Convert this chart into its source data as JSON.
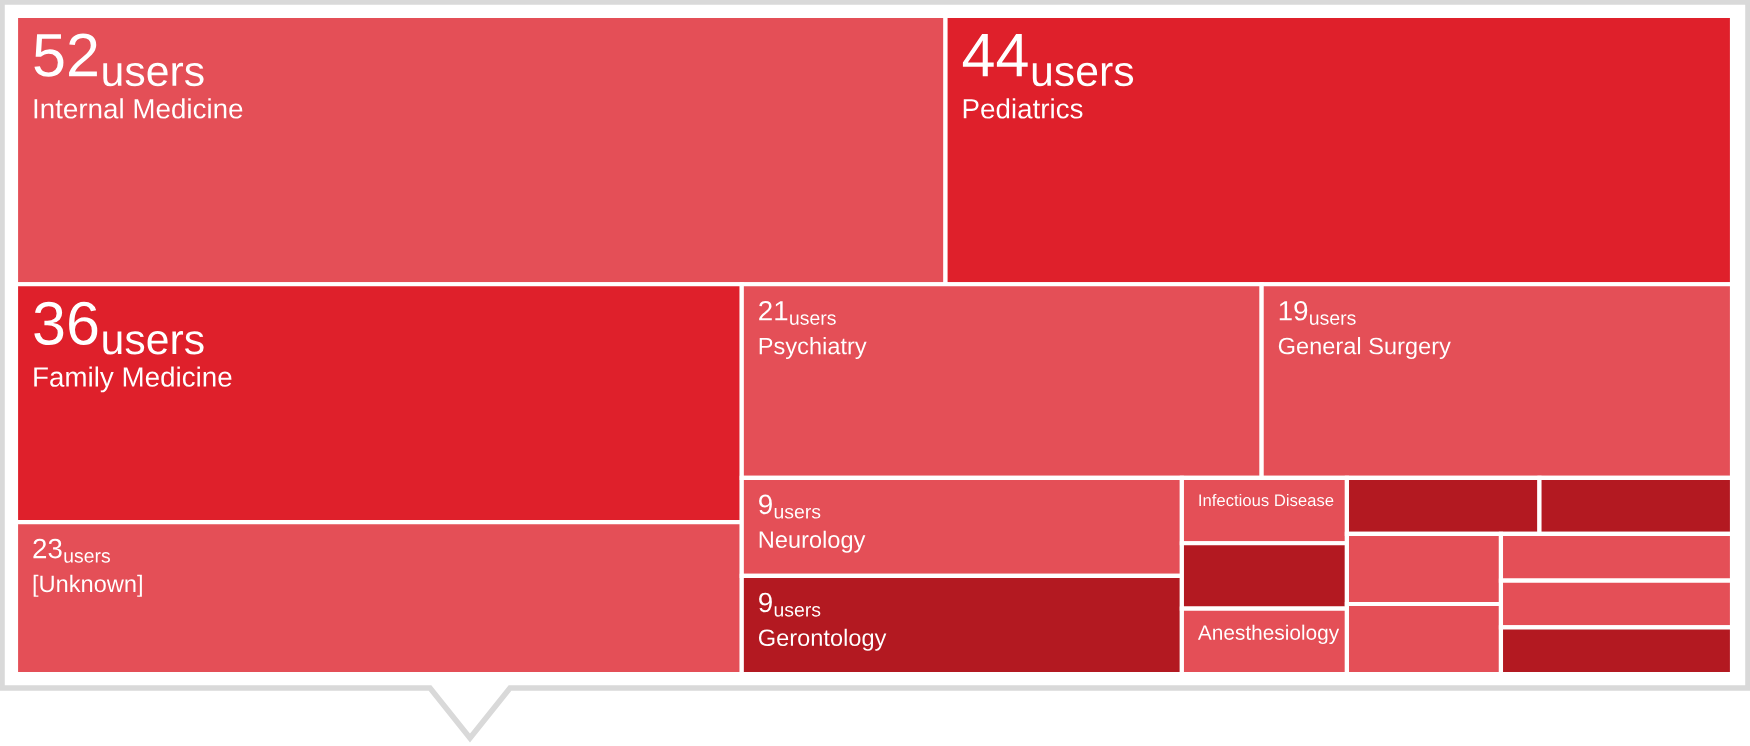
{
  "chart_data": {
    "type": "other",
    "categories": [
      "Internal Medicine",
      "Pediatrics",
      "Family Medicine",
      "[Unknown]",
      "Psychiatry",
      "General Surgery",
      "Neurology",
      "Gerontology",
      "Infectious Disease",
      null,
      "Anesthesiology",
      null,
      null,
      null,
      null,
      null,
      null,
      null
    ],
    "values": [
      52,
      44,
      36,
      23,
      21,
      19,
      9,
      9,
      null,
      null,
      null,
      null,
      null,
      null,
      null,
      null,
      null,
      null
    ],
    "value_labels": [
      "52 users",
      "44 users",
      "36 users",
      "23 users",
      "21 users",
      "19 users",
      "9 users",
      "9 users",
      null,
      null,
      null,
      null,
      null,
      null,
      null,
      null,
      null,
      null
    ],
    "colors": [
      "#e44f57",
      "#df202b",
      "#df202b",
      "#e44f57",
      "#e44f57",
      "#e44f57",
      "#e44f57",
      "#b31921",
      "#e44f57",
      "#b31921",
      "#e44f57",
      "#b31921",
      "#b31921",
      "#e44f57",
      "#e44f57",
      "#e44f57",
      "#e44f57",
      "#b31921"
    ]
  }
}
